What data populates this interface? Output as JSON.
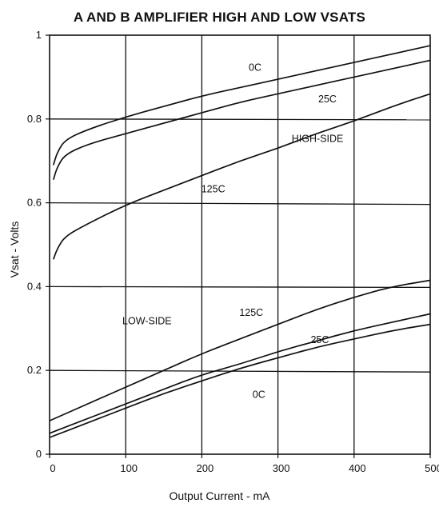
{
  "chart_data": {
    "type": "line",
    "title": "A AND B AMPLIFIER HIGH AND LOW VSATS",
    "xlabel": "Output Current - mA",
    "ylabel": "Vsat - Volts",
    "xlim": [
      0,
      500
    ],
    "ylim": [
      0,
      1
    ],
    "grid": true,
    "x_ticks": [
      "0",
      "100",
      "200",
      "300",
      "400",
      "500"
    ],
    "y_ticks": [
      "0",
      "0.2",
      "0.4",
      "0.6",
      "0.8",
      "1"
    ],
    "group_labels": [
      "HIGH-SIDE",
      "LOW-SIDE"
    ],
    "series": [
      {
        "name": "0C",
        "group": "high",
        "x": [
          5,
          10,
          20,
          50,
          100,
          150,
          200,
          250,
          300,
          350,
          400,
          450,
          500
        ],
        "y": [
          0.69,
          0.72,
          0.75,
          0.775,
          0.805,
          0.83,
          0.855,
          0.875,
          0.895,
          0.915,
          0.935,
          0.955,
          0.975
        ]
      },
      {
        "name": "25C",
        "group": "high",
        "x": [
          5,
          10,
          20,
          50,
          100,
          150,
          200,
          250,
          300,
          350,
          400,
          450,
          500
        ],
        "y": [
          0.655,
          0.685,
          0.715,
          0.74,
          0.765,
          0.79,
          0.815,
          0.84,
          0.86,
          0.88,
          0.9,
          0.92,
          0.94
        ]
      },
      {
        "name": "125C",
        "group": "high",
        "x": [
          5,
          10,
          20,
          50,
          100,
          150,
          200,
          250,
          300,
          350,
          400,
          450,
          500
        ],
        "y": [
          0.465,
          0.49,
          0.52,
          0.55,
          0.595,
          0.63,
          0.665,
          0.7,
          0.73,
          0.765,
          0.795,
          0.83,
          0.86
        ]
      },
      {
        "name": "125C",
        "group": "low",
        "x": [
          0,
          50,
          100,
          150,
          200,
          250,
          300,
          350,
          400,
          450,
          500
        ],
        "y": [
          0.08,
          0.12,
          0.16,
          0.2,
          0.24,
          0.275,
          0.31,
          0.345,
          0.375,
          0.4,
          0.415
        ]
      },
      {
        "name": "25C",
        "group": "low",
        "x": [
          0,
          50,
          100,
          150,
          200,
          250,
          300,
          350,
          400,
          450,
          500
        ],
        "y": [
          0.05,
          0.085,
          0.12,
          0.155,
          0.19,
          0.215,
          0.245,
          0.27,
          0.295,
          0.315,
          0.335
        ]
      },
      {
        "name": "0C",
        "group": "low",
        "x": [
          0,
          50,
          100,
          150,
          200,
          250,
          300,
          350,
          400,
          450,
          500
        ],
        "y": [
          0.04,
          0.075,
          0.11,
          0.145,
          0.175,
          0.205,
          0.23,
          0.255,
          0.275,
          0.295,
          0.31
        ]
      }
    ]
  }
}
